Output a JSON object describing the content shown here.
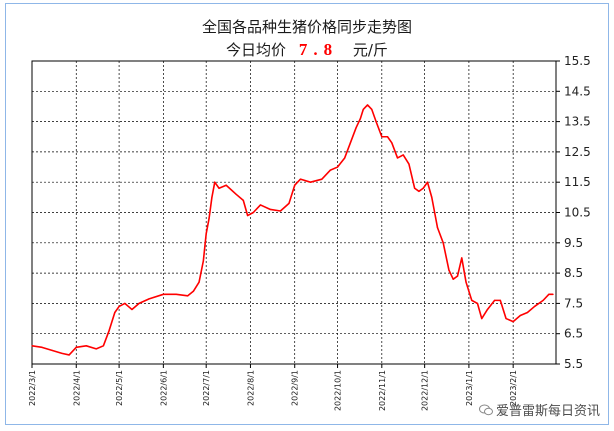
{
  "title": "全国各品种生猪价格同步走势图",
  "subtitle": {
    "lead": "今日均价",
    "value": "7.8",
    "unit": "元/斤"
  },
  "watermark": "爱普雷斯每日资讯",
  "colors": {
    "line": "#ff0000",
    "grid": "#000000",
    "frame": "#8fb7e8"
  },
  "chart_data": {
    "type": "line",
    "title": "全国各品种生猪价格同步走势图",
    "xlabel": "",
    "ylabel": "",
    "ylim": [
      5.5,
      15.5
    ],
    "y_ticks": [
      "5.5",
      "6.5",
      "7.5",
      "8.5",
      "9.5",
      "10.5",
      "11.5",
      "12.5",
      "13.5",
      "14.5",
      "15.5"
    ],
    "x_ticks": [
      "2022/3/1",
      "2022/4/1",
      "2022/5/1",
      "2022/6/1",
      "2022/7/1",
      "2022/8/1",
      "2022/9/1",
      "2022/10/1",
      "2022/11/1",
      "2022/12/1",
      "2023/1/1",
      "2023/2/1"
    ],
    "xlim": [
      "2022/3/1",
      "2023/3/3"
    ],
    "grid": true,
    "series": [
      {
        "points": [
          [
            "2022/3/1",
            6.1
          ],
          [
            "2022/3/8",
            6.05
          ],
          [
            "2022/3/15",
            5.95
          ],
          [
            "2022/3/22",
            5.85
          ],
          [
            "2022/3/27",
            5.8
          ],
          [
            "2022/4/1",
            6.05
          ],
          [
            "2022/4/8",
            6.1
          ],
          [
            "2022/4/15",
            6.0
          ],
          [
            "2022/4/20",
            6.1
          ],
          [
            "2022/4/24",
            6.6
          ],
          [
            "2022/4/28",
            7.2
          ],
          [
            "2022/5/1",
            7.4
          ],
          [
            "2022/5/5",
            7.5
          ],
          [
            "2022/5/10",
            7.3
          ],
          [
            "2022/5/15",
            7.5
          ],
          [
            "2022/5/22",
            7.65
          ],
          [
            "2022/6/1",
            7.8
          ],
          [
            "2022/6/10",
            7.8
          ],
          [
            "2022/6/18",
            7.75
          ],
          [
            "2022/6/22",
            7.9
          ],
          [
            "2022/6/26",
            8.2
          ],
          [
            "2022/6/29",
            8.9
          ],
          [
            "2022/7/1",
            9.8
          ],
          [
            "2022/7/3",
            10.3
          ],
          [
            "2022/7/5",
            11.0
          ],
          [
            "2022/7/7",
            11.5
          ],
          [
            "2022/7/10",
            11.3
          ],
          [
            "2022/7/15",
            11.4
          ],
          [
            "2022/7/22",
            11.1
          ],
          [
            "2022/7/27",
            10.9
          ],
          [
            "2022/7/30",
            10.4
          ],
          [
            "2022/8/3",
            10.5
          ],
          [
            "2022/8/8",
            10.75
          ],
          [
            "2022/8/15",
            10.6
          ],
          [
            "2022/8/22",
            10.55
          ],
          [
            "2022/8/28",
            10.8
          ],
          [
            "2022/9/1",
            11.4
          ],
          [
            "2022/9/5",
            11.6
          ],
          [
            "2022/9/12",
            11.5
          ],
          [
            "2022/9/20",
            11.6
          ],
          [
            "2022/9/26",
            11.9
          ],
          [
            "2022/10/1",
            12.0
          ],
          [
            "2022/10/6",
            12.3
          ],
          [
            "2022/10/10",
            12.8
          ],
          [
            "2022/10/14",
            13.3
          ],
          [
            "2022/10/17",
            13.6
          ],
          [
            "2022/10/19",
            13.9
          ],
          [
            "2022/10/22",
            14.05
          ],
          [
            "2022/10/25",
            13.9
          ],
          [
            "2022/10/28",
            13.5
          ],
          [
            "2022/11/1",
            13.0
          ],
          [
            "2022/11/5",
            13.0
          ],
          [
            "2022/11/8",
            12.8
          ],
          [
            "2022/11/12",
            12.3
          ],
          [
            "2022/11/16",
            12.4
          ],
          [
            "2022/11/20",
            12.1
          ],
          [
            "2022/11/24",
            11.3
          ],
          [
            "2022/11/27",
            11.2
          ],
          [
            "2022/11/30",
            11.3
          ],
          [
            "2022/12/3",
            11.5
          ],
          [
            "2022/12/6",
            11.0
          ],
          [
            "2022/12/10",
            10.0
          ],
          [
            "2022/12/14",
            9.5
          ],
          [
            "2022/12/18",
            8.6
          ],
          [
            "2022/12/21",
            8.3
          ],
          [
            "2022/12/24",
            8.4
          ],
          [
            "2022/12/27",
            9.0
          ],
          [
            "2022/12/30",
            8.2
          ],
          [
            "2023/1/3",
            7.6
          ],
          [
            "2023/1/7",
            7.5
          ],
          [
            "2023/1/10",
            7.0
          ],
          [
            "2023/1/14",
            7.3
          ],
          [
            "2023/1/19",
            7.6
          ],
          [
            "2023/1/23",
            7.6
          ],
          [
            "2023/1/27",
            7.0
          ],
          [
            "2023/2/1",
            6.9
          ],
          [
            "2023/2/6",
            7.1
          ],
          [
            "2023/2/11",
            7.2
          ],
          [
            "2023/2/16",
            7.4
          ],
          [
            "2023/2/22",
            7.6
          ],
          [
            "2023/2/26",
            7.8
          ],
          [
            "2023/3/1",
            7.8
          ]
        ]
      }
    ]
  }
}
